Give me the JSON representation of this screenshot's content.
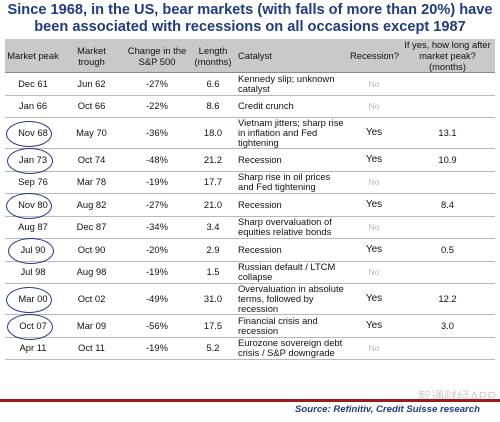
{
  "title": "Since 1968, in the US, bear markets (with falls of more than 20%) have been associated with recessions on all occasions except 1987",
  "headers": {
    "market_peak": "Market peak",
    "market_trough": "Market trough",
    "change": "Change in the S&P 500",
    "length": "Length (months)",
    "catalyst": "Catalyst",
    "recession": "Recession?",
    "months_after": "If yes, how long after market peak? (months)"
  },
  "rows": [
    {
      "peak": "Dec 61",
      "trough": "Jun 62",
      "change": "-27%",
      "length": "6.6",
      "catalyst": "Kennedy slip; unknown catalyst",
      "recession": "No",
      "after": "",
      "circled": false
    },
    {
      "peak": "Jan 66",
      "trough": "Oct 66",
      "change": "-22%",
      "length": "8.6",
      "catalyst": "Credit crunch",
      "recession": "No",
      "after": "",
      "circled": false
    },
    {
      "peak": "Nov 68",
      "trough": "May 70",
      "change": "-36%",
      "length": "18.0",
      "catalyst": "Vietnam jitters; sharp rise in inflation and Fed tightening",
      "recession": "Yes",
      "after": "13.1",
      "circled": true
    },
    {
      "peak": "Jan 73",
      "trough": "Oct 74",
      "change": "-48%",
      "length": "21.2",
      "catalyst": "Recession",
      "recession": "Yes",
      "after": "10.9",
      "circled": true
    },
    {
      "peak": "Sep 76",
      "trough": "Mar 78",
      "change": "-19%",
      "length": "17.7",
      "catalyst": "Sharp rise in oil prices and Fed tightening",
      "recession": "No",
      "after": "",
      "circled": false
    },
    {
      "peak": "Nov 80",
      "trough": "Aug 82",
      "change": "-27%",
      "length": "21.0",
      "catalyst": "Recession",
      "recession": "Yes",
      "after": "8.4",
      "circled": true
    },
    {
      "peak": "Aug 87",
      "trough": "Dec 87",
      "change": "-34%",
      "length": "3.4",
      "catalyst": "Sharp overvaluation of equities relative bonds",
      "recession": "No",
      "after": "",
      "circled": false
    },
    {
      "peak": "Jul 90",
      "trough": "Oct 90",
      "change": "-20%",
      "length": "2.9",
      "catalyst": "Recession",
      "recession": "Yes",
      "after": "0.5",
      "circled": true
    },
    {
      "peak": "Jul 98",
      "trough": "Aug 98",
      "change": "-19%",
      "length": "1.5",
      "catalyst": "Russian default / LTCM collapse",
      "recession": "No",
      "after": "",
      "circled": false
    },
    {
      "peak": "Mar 00",
      "trough": "Oct 02",
      "change": "-49%",
      "length": "31.0",
      "catalyst": "Overvaluation in absolute terms, followed by recession",
      "recession": "Yes",
      "after": "12.2",
      "circled": true
    },
    {
      "peak": "Oct 07",
      "trough": "Mar 09",
      "change": "-56%",
      "length": "17.5",
      "catalyst": "Financial crisis and recession",
      "recession": "Yes",
      "after": "3.0",
      "circled": true
    },
    {
      "peak": "Apr 11",
      "trough": "Oct 11",
      "change": "-19%",
      "length": "5.2",
      "catalyst": "Eurozone sovereign debt crisis / S&P downgrade",
      "recession": "No",
      "after": "",
      "circled": false
    }
  ],
  "source": "Source: Refinitiv, Credit Suisse research",
  "watermark": "智通财经APP"
}
